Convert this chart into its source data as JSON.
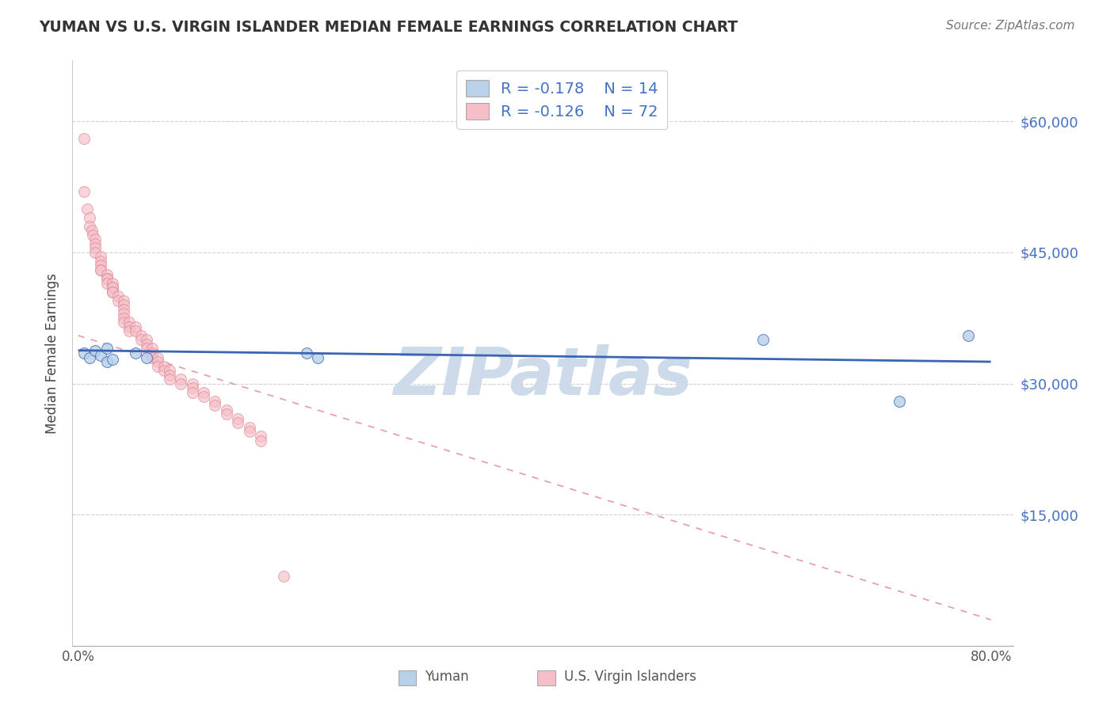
{
  "title": "YUMAN VS U.S. VIRGIN ISLANDER MEDIAN FEMALE EARNINGS CORRELATION CHART",
  "source_text": "Source: ZipAtlas.com",
  "ylabel": "Median Female Earnings",
  "xlim": [
    -0.005,
    0.82
  ],
  "ylim": [
    0,
    67000
  ],
  "yticks": [
    15000,
    30000,
    45000,
    60000
  ],
  "ytick_labels": [
    "$15,000",
    "$30,000",
    "$45,000",
    "$60,000"
  ],
  "xticks": [
    0.0,
    0.1,
    0.2,
    0.3,
    0.4,
    0.5,
    0.6,
    0.7,
    0.8
  ],
  "xtick_labels": [
    "0.0%",
    "",
    "",
    "",
    "",
    "",
    "",
    "",
    "80.0%"
  ],
  "legend_r_yuman": "R = -0.178",
  "legend_n_yuman": "N = 14",
  "legend_r_usvi": "R = -0.126",
  "legend_n_usvi": "N = 72",
  "yuman_color": "#b8d0e8",
  "usvi_color": "#f5bfc8",
  "yuman_line_color": "#3a65b5",
  "usvi_line_color": "#e08090",
  "watermark": "ZIPatlas",
  "watermark_color": "#ccdaea",
  "marker_size": 100,
  "scatter_alpha": 0.65,
  "yuman_x": [
    0.005,
    0.01,
    0.015,
    0.02,
    0.025,
    0.025,
    0.03,
    0.05,
    0.06,
    0.2,
    0.21,
    0.6,
    0.72,
    0.78
  ],
  "yuman_y": [
    33500,
    33000,
    33800,
    33200,
    32500,
    34000,
    32800,
    33500,
    33000,
    33500,
    33000,
    35000,
    28000,
    35500
  ],
  "usvi_x": [
    0.005,
    0.005,
    0.008,
    0.01,
    0.01,
    0.012,
    0.013,
    0.015,
    0.015,
    0.015,
    0.015,
    0.02,
    0.02,
    0.02,
    0.02,
    0.02,
    0.025,
    0.025,
    0.025,
    0.025,
    0.03,
    0.03,
    0.03,
    0.03,
    0.03,
    0.035,
    0.035,
    0.04,
    0.04,
    0.04,
    0.04,
    0.04,
    0.04,
    0.045,
    0.045,
    0.045,
    0.05,
    0.05,
    0.055,
    0.055,
    0.06,
    0.06,
    0.06,
    0.065,
    0.065,
    0.065,
    0.07,
    0.07,
    0.07,
    0.075,
    0.075,
    0.08,
    0.08,
    0.08,
    0.09,
    0.09,
    0.1,
    0.1,
    0.1,
    0.11,
    0.11,
    0.12,
    0.12,
    0.13,
    0.13,
    0.14,
    0.14,
    0.15,
    0.15,
    0.16,
    0.16,
    0.18
  ],
  "usvi_y": [
    58000,
    52000,
    50000,
    49000,
    48000,
    47500,
    47000,
    46500,
    46000,
    45500,
    45000,
    44500,
    44000,
    43500,
    43000,
    43000,
    42500,
    42000,
    42000,
    41500,
    41500,
    41000,
    41000,
    40500,
    40500,
    40000,
    39500,
    39500,
    39000,
    38500,
    38000,
    37500,
    37000,
    37000,
    36500,
    36000,
    36500,
    36000,
    35500,
    35000,
    35000,
    34500,
    34000,
    34000,
    33500,
    33000,
    33000,
    32500,
    32000,
    32000,
    31500,
    31500,
    31000,
    30500,
    30500,
    30000,
    30000,
    29500,
    29000,
    29000,
    28500,
    28000,
    27500,
    27000,
    26500,
    26000,
    25500,
    25000,
    24500,
    24000,
    23500,
    8000
  ],
  "trend_yuman_x0": 0.0,
  "trend_yuman_x1": 0.8,
  "trend_yuman_y0": 33800,
  "trend_yuman_y1": 32500,
  "trend_usvi_x0": 0.0,
  "trend_usvi_x1": 0.8,
  "trend_usvi_y0": 35500,
  "trend_usvi_y1": 3000
}
